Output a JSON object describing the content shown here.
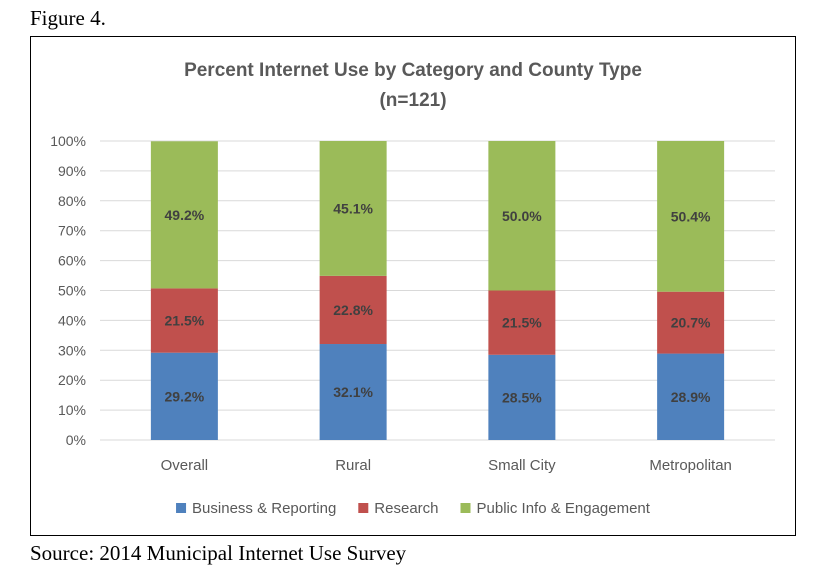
{
  "figure_label": "Figure 4.",
  "source_note": "Source: 2014 Municipal Internet Use Survey",
  "chart_data": {
    "type": "bar",
    "stacked": true,
    "title": "Percent Internet Use by Category and County Type",
    "subtitle": "(n=121)",
    "xlabel": "",
    "ylabel": "",
    "ylim": [
      0,
      100
    ],
    "y_ticks": [
      "0%",
      "10%",
      "20%",
      "30%",
      "40%",
      "50%",
      "60%",
      "70%",
      "80%",
      "90%",
      "100%"
    ],
    "grid": true,
    "legend_position": "bottom",
    "categories": [
      "Overall",
      "Rural",
      "Small City",
      "Metropolitan"
    ],
    "series": [
      {
        "name": "Business & Reporting",
        "color": "#4f81bd",
        "values": [
          29.2,
          32.1,
          28.5,
          28.9
        ],
        "labels": [
          "29.2%",
          "32.1%",
          "28.5%",
          "28.9%"
        ]
      },
      {
        "name": "Research",
        "color": "#c0504d",
        "values": [
          21.5,
          22.8,
          21.5,
          20.7
        ],
        "labels": [
          "21.5%",
          "22.8%",
          "21.5%",
          "20.7%"
        ]
      },
      {
        "name": "Public Info & Engagement",
        "color": "#9bbb59",
        "values": [
          49.2,
          45.1,
          50.0,
          50.4
        ],
        "labels": [
          "49.2%",
          "45.1%",
          "50.0%",
          "50.4%"
        ]
      }
    ]
  }
}
